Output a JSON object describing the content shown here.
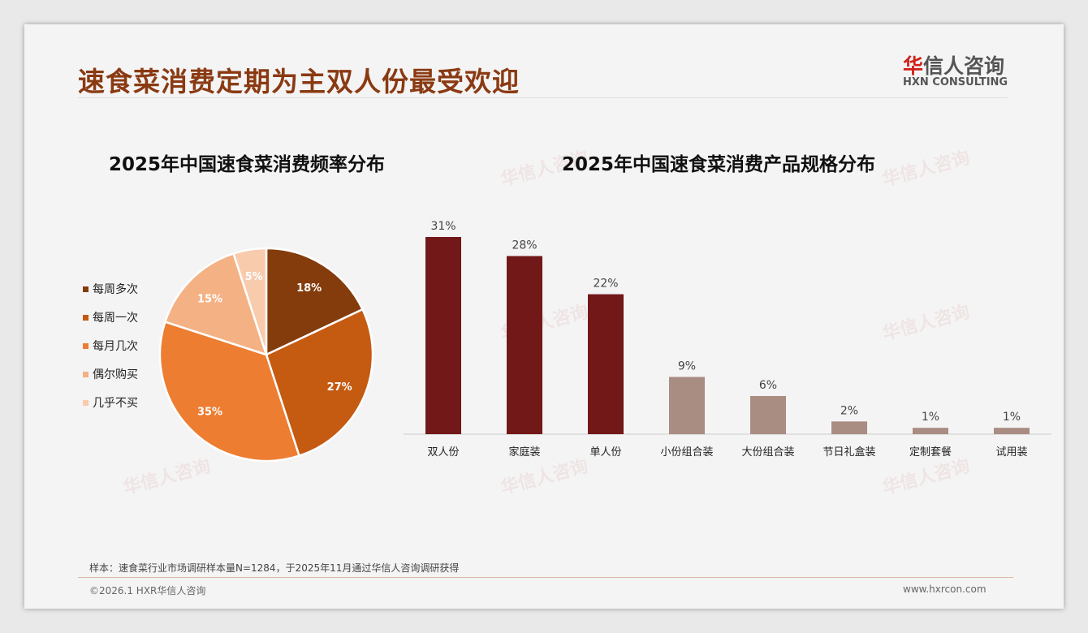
{
  "title": "速食菜消费定期为主双人份最受欢迎",
  "logo": {
    "cn_first": "华",
    "cn_rest": "信人咨询",
    "en": "HXN CONSULTING"
  },
  "watermark": "华信人咨询",
  "footer": {
    "note": "样本：速食菜行业市场调研样本量N=1284，于2025年11月通过华信人咨询调研获得",
    "copyright": "©2026.1 HXR华信人咨询",
    "site": "www.hxrcon.com"
  },
  "chart_data": [
    {
      "type": "pie",
      "title": "2025年中国速食菜消费频率分布",
      "legend_position": "left",
      "categories": [
        "每周多次",
        "每周一次",
        "每月几次",
        "偶尔购买",
        "几乎不买"
      ],
      "values": [
        18,
        27,
        35,
        15,
        5
      ],
      "labels": [
        "18%",
        "27%",
        "35%",
        "15%",
        "5%"
      ],
      "colors": [
        "#843c0c",
        "#c55a11",
        "#ed7d31",
        "#f4b183",
        "#f8cbad"
      ]
    },
    {
      "type": "bar",
      "title": "2025年中国速食菜消费产品规格分布",
      "categories": [
        "双人份",
        "家庭装",
        "单人份",
        "小份组合装",
        "大份组合装",
        "节日礼盒装",
        "定制套餐",
        "试用装"
      ],
      "values": [
        31,
        28,
        22,
        9,
        6,
        2,
        1,
        1
      ],
      "labels": [
        "31%",
        "28%",
        "22%",
        "9%",
        "6%",
        "2%",
        "1%",
        "1%"
      ],
      "colors": [
        "#721818",
        "#721818",
        "#721818",
        "#a98c82",
        "#a98c82",
        "#a98c82",
        "#a98c82",
        "#a98c82"
      ],
      "ylim": [
        0,
        31
      ],
      "grid": false
    }
  ]
}
